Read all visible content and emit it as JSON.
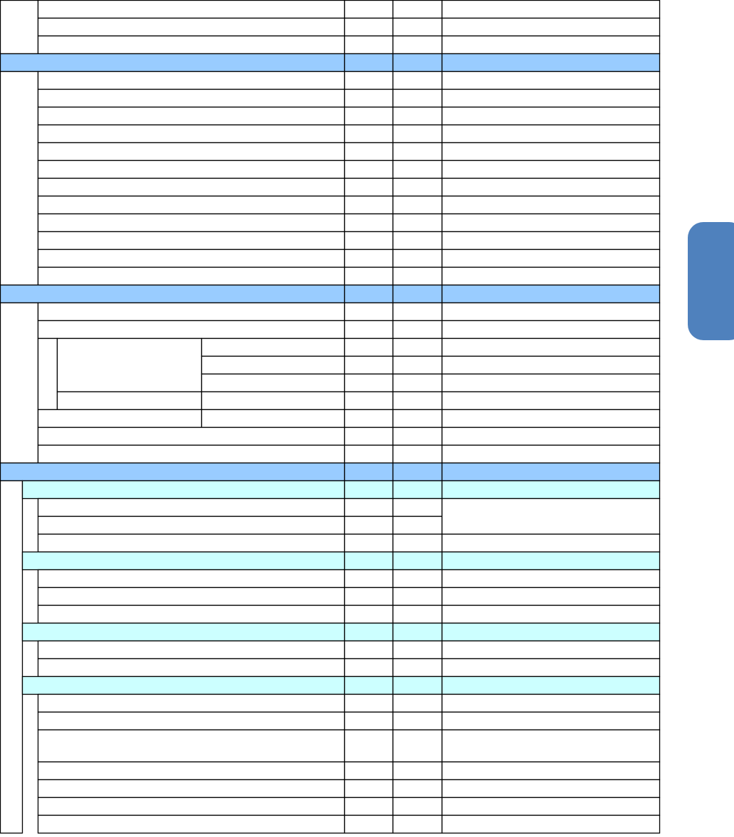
{
  "colors": {
    "section_band": "#99CCFF",
    "subsection_band": "#CCFFFF",
    "side_tab": "#4F81BD",
    "grid_line": "#000000"
  }
}
